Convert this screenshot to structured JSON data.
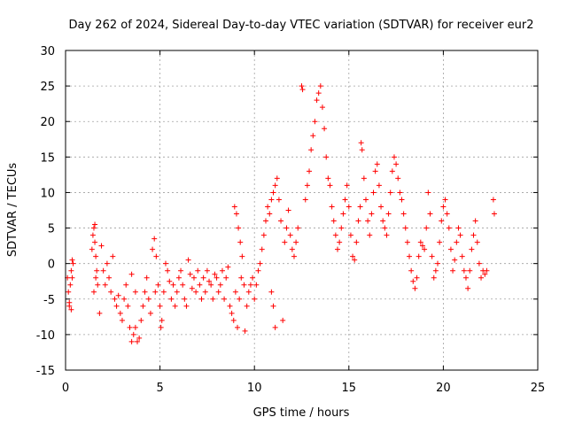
{
  "chart_data": {
    "type": "scatter",
    "marker": "plus",
    "title": "Day 262 of 2024, Sidereal Day-to-day VTEC variation (SDTVAR) for receiver eur2",
    "xlabel": "GPS time / hours",
    "ylabel": "SDTVAR / TECUs",
    "xlim": [
      0,
      25
    ],
    "ylim": [
      -15,
      30
    ],
    "xticks": [
      0,
      5,
      10,
      15,
      20,
      25
    ],
    "yticks": [
      -15,
      -10,
      -5,
      0,
      5,
      10,
      15,
      20,
      25,
      30
    ],
    "grid": true,
    "color": "#ff0000",
    "series": [
      {
        "name": "SDTVAR",
        "points": [
          [
            0.1,
            -2
          ],
          [
            0.15,
            -4
          ],
          [
            0.2,
            -5.5
          ],
          [
            0.25,
            -3
          ],
          [
            0.3,
            -1
          ],
          [
            0.35,
            0.5
          ],
          [
            0.4,
            0
          ],
          [
            0.2,
            -6
          ],
          [
            0.3,
            -6.5
          ],
          [
            0.35,
            -2
          ],
          [
            1.4,
            2
          ],
          [
            1.45,
            4
          ],
          [
            1.5,
            5
          ],
          [
            1.55,
            3
          ],
          [
            1.6,
            1
          ],
          [
            1.65,
            -1
          ],
          [
            1.7,
            -3
          ],
          [
            1.5,
            -4
          ],
          [
            1.6,
            -2
          ],
          [
            1.55,
            5.5
          ],
          [
            1.8,
            -7
          ],
          [
            1.9,
            2.5
          ],
          [
            2.0,
            -1
          ],
          [
            2.1,
            -3
          ],
          [
            2.2,
            0
          ],
          [
            2.3,
            -2
          ],
          [
            2.4,
            -4
          ],
          [
            2.5,
            1
          ],
          [
            2.6,
            -5
          ],
          [
            2.7,
            -6
          ],
          [
            2.8,
            -4.5
          ],
          [
            2.9,
            -7
          ],
          [
            3.0,
            -8
          ],
          [
            3.1,
            -5
          ],
          [
            3.2,
            -3
          ],
          [
            3.3,
            -6
          ],
          [
            3.4,
            -9
          ],
          [
            3.5,
            -11
          ],
          [
            3.6,
            -10
          ],
          [
            3.7,
            -9
          ],
          [
            3.8,
            -11
          ],
          [
            3.9,
            -10.5
          ],
          [
            4.0,
            -8
          ],
          [
            4.1,
            -6
          ],
          [
            4.2,
            -4
          ],
          [
            4.3,
            -2
          ],
          [
            4.4,
            -5
          ],
          [
            4.5,
            -7
          ],
          [
            3.5,
            -1.5
          ],
          [
            3.7,
            -4
          ],
          [
            4.6,
            2
          ],
          [
            4.7,
            3.5
          ],
          [
            4.8,
            1
          ],
          [
            4.9,
            -3
          ],
          [
            5.0,
            -6
          ],
          [
            5.1,
            -8
          ],
          [
            4.75,
            -4
          ],
          [
            5.05,
            -9
          ],
          [
            5.2,
            -4
          ],
          [
            5.3,
            0
          ],
          [
            5.4,
            -1
          ],
          [
            5.5,
            -2.5
          ],
          [
            5.6,
            -5
          ],
          [
            5.7,
            -3
          ],
          [
            5.8,
            -6
          ],
          [
            5.9,
            -4
          ],
          [
            6.0,
            -2
          ],
          [
            6.1,
            -1
          ],
          [
            6.2,
            -3
          ],
          [
            6.3,
            -5
          ],
          [
            6.4,
            -6
          ],
          [
            6.5,
            0.5
          ],
          [
            6.6,
            -1.5
          ],
          [
            6.7,
            -3.5
          ],
          [
            6.8,
            -2
          ],
          [
            6.9,
            -4
          ],
          [
            7.0,
            -1
          ],
          [
            7.1,
            -3
          ],
          [
            7.2,
            -5
          ],
          [
            7.3,
            -2
          ],
          [
            7.4,
            -4
          ],
          [
            7.5,
            -1
          ],
          [
            7.6,
            -2.5
          ],
          [
            7.7,
            -3
          ],
          [
            7.8,
            -5
          ],
          [
            7.9,
            -1.5
          ],
          [
            8.0,
            -2
          ],
          [
            8.1,
            -4
          ],
          [
            8.2,
            -3
          ],
          [
            8.3,
            -1
          ],
          [
            8.4,
            -5
          ],
          [
            8.5,
            -2
          ],
          [
            8.6,
            -0.5
          ],
          [
            8.7,
            -6
          ],
          [
            8.8,
            -7
          ],
          [
            8.9,
            -8
          ],
          [
            9.0,
            -4
          ],
          [
            9.1,
            -9
          ],
          [
            9.2,
            -5
          ],
          [
            9.3,
            -2
          ],
          [
            8.95,
            8
          ],
          [
            9.05,
            7
          ],
          [
            9.15,
            5
          ],
          [
            9.25,
            3
          ],
          [
            9.35,
            1
          ],
          [
            9.45,
            -3
          ],
          [
            9.5,
            -9.5
          ],
          [
            9.6,
            -6
          ],
          [
            9.7,
            -4
          ],
          [
            9.8,
            -3
          ],
          [
            9.9,
            -2
          ],
          [
            10.0,
            -5
          ],
          [
            10.1,
            -3
          ],
          [
            10.2,
            -1
          ],
          [
            10.3,
            0
          ],
          [
            10.4,
            2
          ],
          [
            10.5,
            4
          ],
          [
            10.6,
            6
          ],
          [
            10.7,
            8
          ],
          [
            10.8,
            7
          ],
          [
            10.9,
            9
          ],
          [
            11.0,
            10
          ],
          [
            11.1,
            11
          ],
          [
            11.2,
            12
          ],
          [
            11.3,
            9
          ],
          [
            11.4,
            6
          ],
          [
            11.0,
            -6
          ],
          [
            11.1,
            -9
          ],
          [
            10.9,
            -4
          ],
          [
            11.5,
            -8
          ],
          [
            11.6,
            3
          ],
          [
            11.7,
            5
          ],
          [
            11.8,
            7.5
          ],
          [
            11.9,
            4
          ],
          [
            12.0,
            2
          ],
          [
            12.1,
            1
          ],
          [
            12.2,
            3
          ],
          [
            12.3,
            5
          ],
          [
            12.5,
            25
          ],
          [
            12.55,
            24.5
          ],
          [
            12.7,
            9
          ],
          [
            12.8,
            11
          ],
          [
            12.9,
            13
          ],
          [
            13.0,
            16
          ],
          [
            13.1,
            18
          ],
          [
            13.2,
            20
          ],
          [
            13.3,
            23
          ],
          [
            13.4,
            24
          ],
          [
            13.5,
            25
          ],
          [
            13.6,
            22
          ],
          [
            13.7,
            19
          ],
          [
            13.8,
            15
          ],
          [
            13.9,
            12
          ],
          [
            14.0,
            11
          ],
          [
            14.1,
            8
          ],
          [
            14.2,
            6
          ],
          [
            14.3,
            4
          ],
          [
            14.4,
            2
          ],
          [
            14.5,
            3
          ],
          [
            14.6,
            5
          ],
          [
            14.7,
            7
          ],
          [
            14.8,
            9
          ],
          [
            14.9,
            11
          ],
          [
            15.0,
            8
          ],
          [
            15.1,
            4
          ],
          [
            15.2,
            1
          ],
          [
            15.3,
            0.5
          ],
          [
            15.4,
            3
          ],
          [
            15.5,
            6
          ],
          [
            15.6,
            8
          ],
          [
            15.65,
            17
          ],
          [
            15.7,
            16
          ],
          [
            15.8,
            12
          ],
          [
            15.9,
            9
          ],
          [
            16.0,
            6
          ],
          [
            16.1,
            4
          ],
          [
            16.2,
            7
          ],
          [
            16.3,
            10
          ],
          [
            16.4,
            13
          ],
          [
            16.5,
            14
          ],
          [
            16.6,
            11
          ],
          [
            16.7,
            8
          ],
          [
            16.8,
            6
          ],
          [
            16.9,
            5
          ],
          [
            17.0,
            4
          ],
          [
            17.1,
            7
          ],
          [
            17.2,
            10
          ],
          [
            17.3,
            13
          ],
          [
            17.4,
            15
          ],
          [
            17.5,
            14
          ],
          [
            17.6,
            12
          ],
          [
            17.7,
            10
          ],
          [
            17.8,
            9
          ],
          [
            17.9,
            7
          ],
          [
            18.0,
            5
          ],
          [
            18.1,
            3
          ],
          [
            18.2,
            1
          ],
          [
            18.3,
            -1
          ],
          [
            18.4,
            -2.5
          ],
          [
            18.5,
            -3.5
          ],
          [
            18.6,
            -2
          ],
          [
            18.7,
            1
          ],
          [
            18.8,
            3
          ],
          [
            18.9,
            2.5
          ],
          [
            19.0,
            2
          ],
          [
            19.1,
            5
          ],
          [
            19.2,
            10
          ],
          [
            19.3,
            7
          ],
          [
            19.4,
            1
          ],
          [
            19.5,
            -2
          ],
          [
            19.6,
            -1
          ],
          [
            19.7,
            0
          ],
          [
            19.8,
            3
          ],
          [
            19.9,
            6
          ],
          [
            20.0,
            8
          ],
          [
            20.1,
            9
          ],
          [
            20.2,
            7
          ],
          [
            20.3,
            5
          ],
          [
            20.4,
            2
          ],
          [
            20.5,
            -1
          ],
          [
            20.6,
            0.5
          ],
          [
            20.7,
            3
          ],
          [
            20.8,
            5
          ],
          [
            20.9,
            4
          ],
          [
            21.0,
            1
          ],
          [
            21.1,
            -1
          ],
          [
            21.2,
            -2
          ],
          [
            21.3,
            -3.5
          ],
          [
            21.4,
            -1
          ],
          [
            21.5,
            2
          ],
          [
            21.6,
            4
          ],
          [
            21.7,
            6
          ],
          [
            21.8,
            3
          ],
          [
            21.9,
            0
          ],
          [
            22.0,
            -2
          ],
          [
            22.1,
            -1
          ],
          [
            22.2,
            -1.5
          ],
          [
            22.3,
            -1
          ],
          [
            22.65,
            9
          ],
          [
            22.7,
            7
          ]
        ]
      }
    ]
  }
}
